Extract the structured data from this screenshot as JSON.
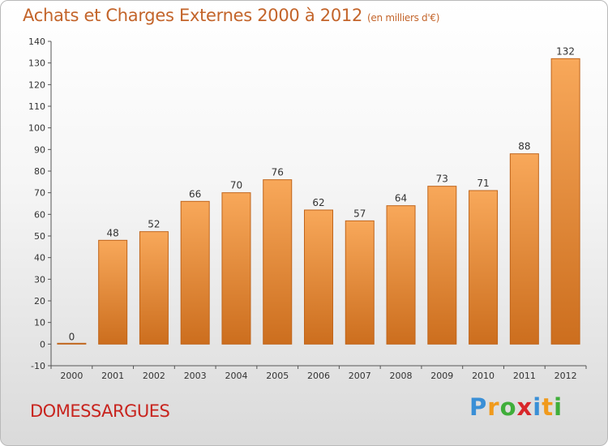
{
  "header": {
    "title": "Achats et Charges Externes 2000 à 2012",
    "subtitle": "(en milliers d'€)"
  },
  "commune": "DOMESSARGUES",
  "logo": {
    "text": "Proxiti",
    "letters": [
      {
        "char": "P",
        "color": "#3a8fd6"
      },
      {
        "char": "r",
        "color": "#f09a1c"
      },
      {
        "char": "o",
        "color": "#3fae3a"
      },
      {
        "char": "x",
        "color": "#d8262a"
      },
      {
        "char": "i",
        "color": "#3a8fd6"
      },
      {
        "char": "t",
        "color": "#f09a1c"
      },
      {
        "char": "i",
        "color": "#3fae3a"
      }
    ]
  },
  "chart_data": {
    "type": "bar",
    "categories": [
      "2000",
      "2001",
      "2002",
      "2003",
      "2004",
      "2005",
      "2006",
      "2007",
      "2008",
      "2009",
      "2010",
      "2011",
      "2012"
    ],
    "values": [
      0,
      48,
      52,
      66,
      70,
      76,
      62,
      57,
      64,
      73,
      71,
      88,
      132
    ],
    "data_labels": [
      "0",
      "48",
      "52",
      "66",
      "70",
      "76",
      "62",
      "57",
      "64",
      "73",
      "71",
      "88",
      "132"
    ],
    "ylim": [
      -10,
      140
    ],
    "yticks": [
      -10,
      0,
      10,
      20,
      30,
      40,
      50,
      60,
      70,
      80,
      90,
      100,
      110,
      120,
      130,
      140
    ],
    "ytick_labels": [
      "-10",
      "0",
      "10",
      "20",
      "30",
      "40",
      "50",
      "60",
      "70",
      "80",
      "90",
      "100",
      "110",
      "120",
      "130",
      "140"
    ],
    "grid": false,
    "colors": {
      "bar_top": "#f8a85a",
      "bar_bottom": "#cc6e1e",
      "bar_stroke": "#c0651b"
    }
  }
}
